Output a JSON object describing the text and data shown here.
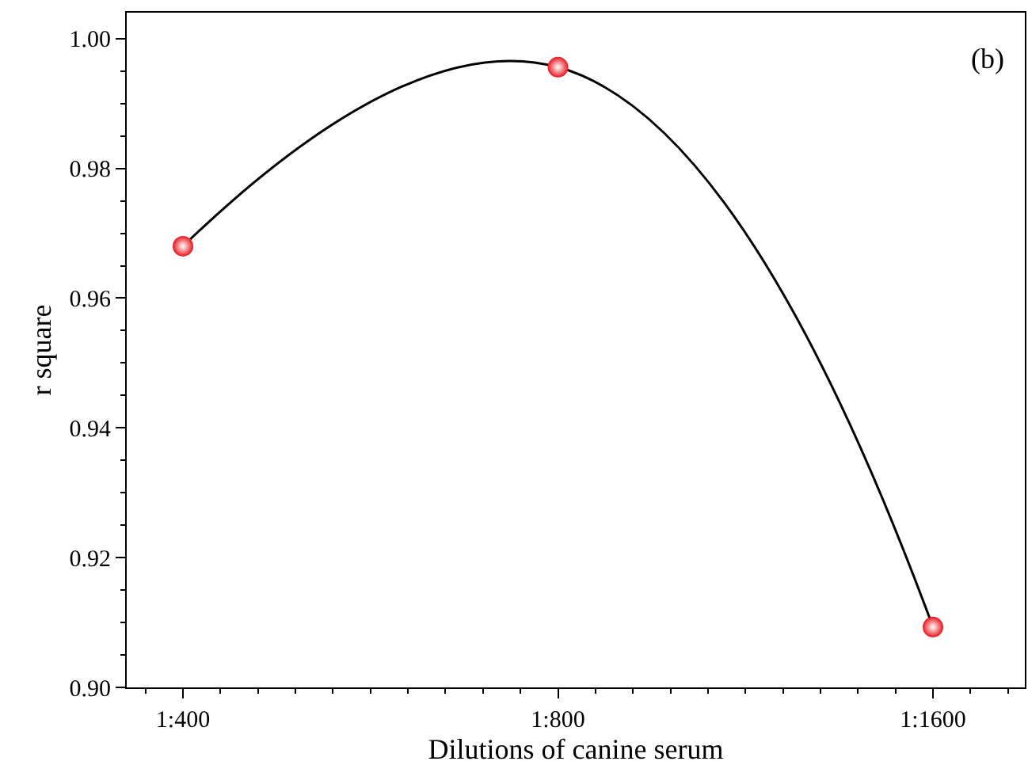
{
  "chart_data": {
    "type": "scatter",
    "xlabel": "Dilutions of canine serum",
    "ylabel": "r square",
    "categories": [
      "1:400",
      "1:800",
      "1:1600"
    ],
    "ylim": [
      0.9,
      1.004
    ],
    "yticks": [
      {
        "value": 0.9,
        "label": "0.90"
      },
      {
        "value": 0.92,
        "label": "0.92"
      },
      {
        "value": 0.94,
        "label": "0.94"
      },
      {
        "value": 0.96,
        "label": "0.96"
      },
      {
        "value": 0.98,
        "label": "0.98"
      },
      {
        "value": 1.0,
        "label": "1.00"
      }
    ],
    "series": [
      {
        "type": "line",
        "color": "#000000",
        "line_style": "solid",
        "values": [
          0.968,
          0.9956,
          0.9093
        ]
      },
      {
        "marker": "circle",
        "color": "#e8141c",
        "values": [
          0.968,
          0.9956,
          0.9093
        ]
      }
    ],
    "annotations": [
      "(b)"
    ]
  }
}
